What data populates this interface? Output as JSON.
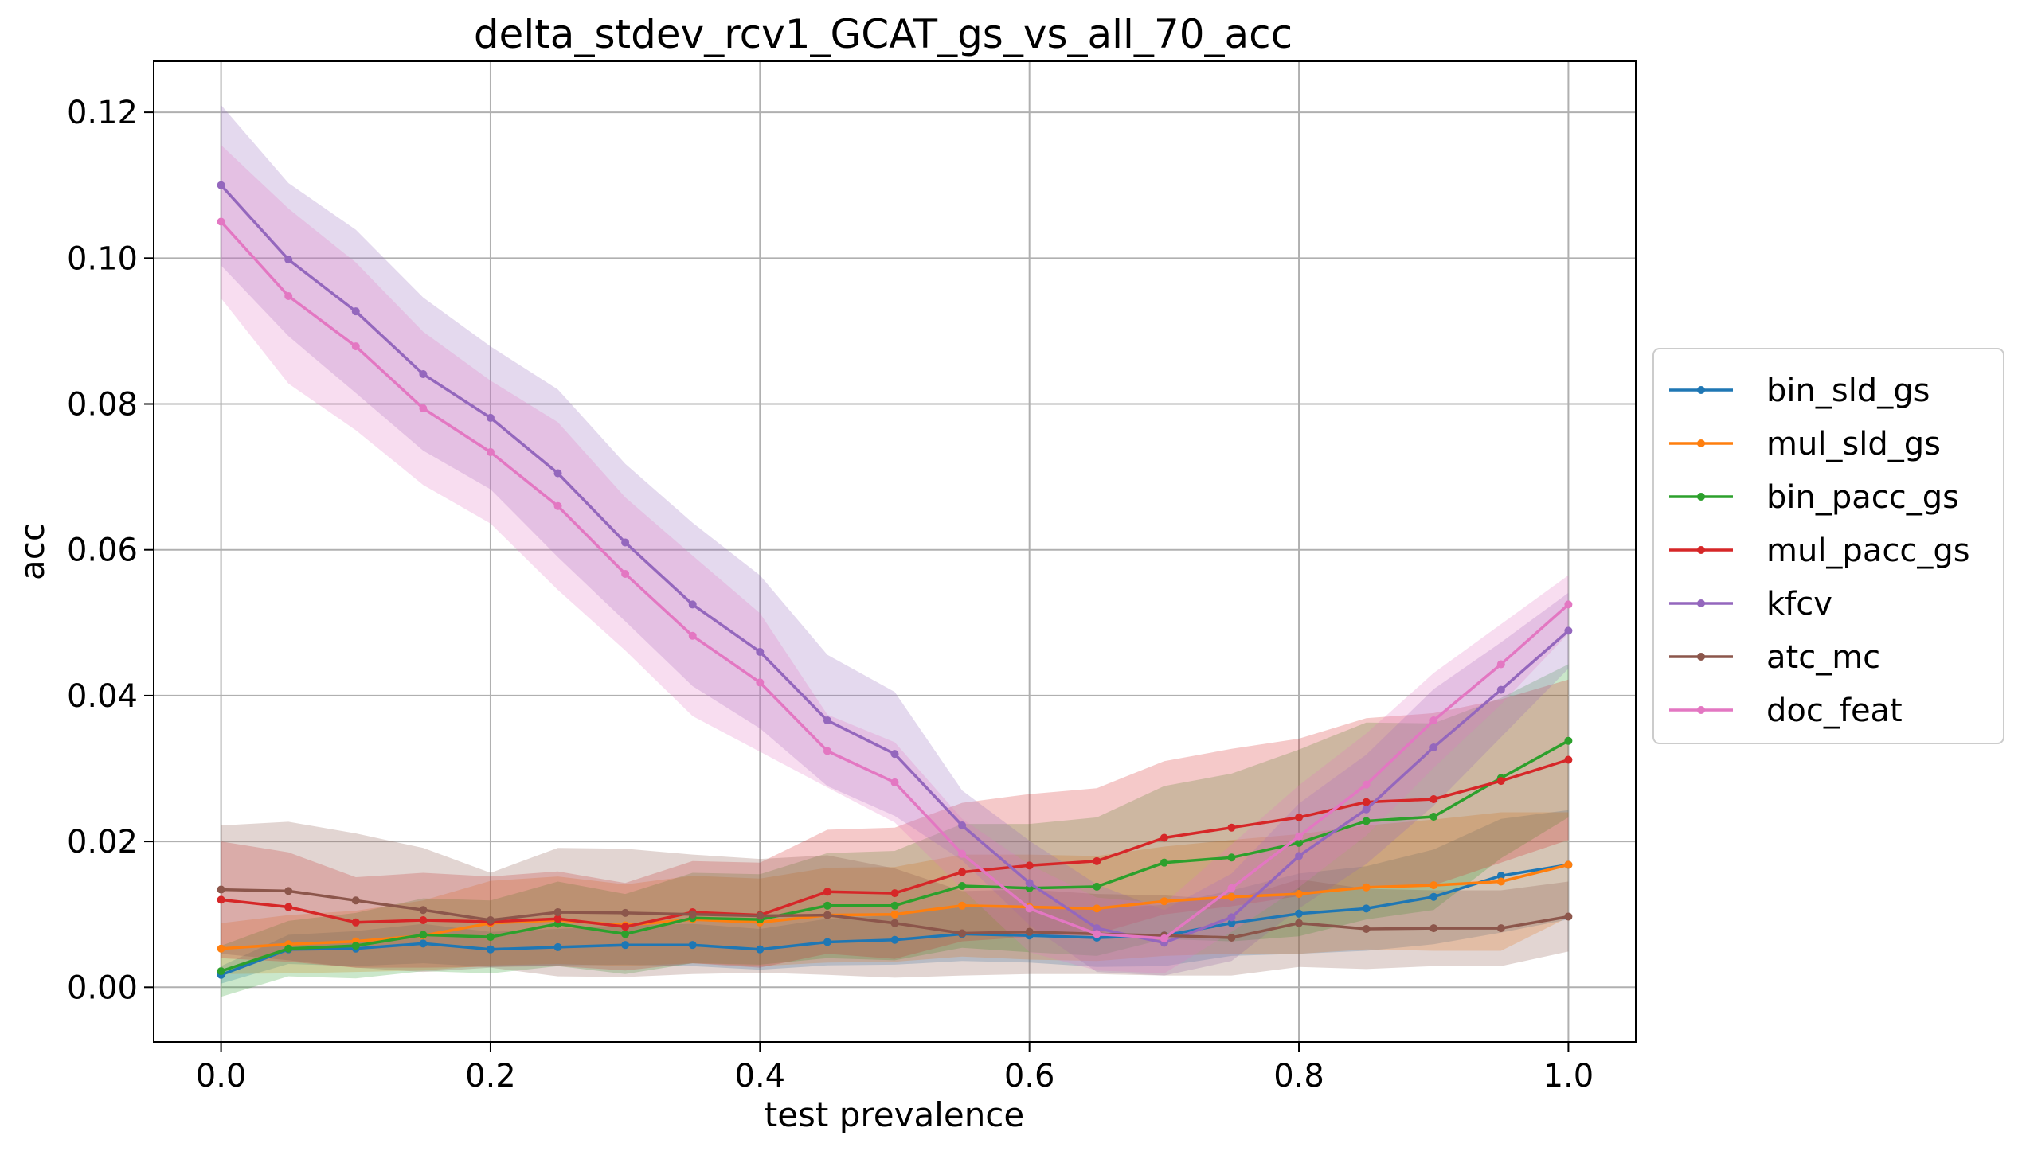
{
  "chart_data": {
    "type": "line",
    "title": "delta_stdev_rcv1_GCAT_gs_vs_all_70_acc",
    "xlabel": "test prevalence",
    "ylabel": "acc",
    "xlim": [
      -0.05,
      1.05
    ],
    "ylim": [
      -0.0075,
      0.127
    ],
    "xticks": [
      0.0,
      0.2,
      0.4,
      0.6,
      0.8,
      1.0
    ],
    "xtick_labels": [
      "0.0",
      "0.2",
      "0.4",
      "0.6",
      "0.8",
      "1.0"
    ],
    "yticks": [
      0.0,
      0.02,
      0.04,
      0.06,
      0.08,
      0.1,
      0.12
    ],
    "ytick_labels": [
      "0.00",
      "0.02",
      "0.04",
      "0.06",
      "0.08",
      "0.10",
      "0.12"
    ],
    "grid": true,
    "legend_position": "outside-right",
    "x": [
      0.0,
      0.05,
      0.1,
      0.15,
      0.2,
      0.25,
      0.3,
      0.35,
      0.4,
      0.45,
      0.5,
      0.55,
      0.6,
      0.65,
      0.7,
      0.75,
      0.8,
      0.85,
      0.9,
      0.95,
      1.0
    ],
    "series": [
      {
        "name": "bin_sld_gs",
        "color": "#1f77b4",
        "values": [
          0.0017,
          0.0052,
          0.0053,
          0.006,
          0.0052,
          0.0055,
          0.0058,
          0.0058,
          0.0052,
          0.0062,
          0.0065,
          0.0073,
          0.0071,
          0.0068,
          0.0071,
          0.0088,
          0.0101,
          0.0108,
          0.0124,
          0.0153,
          0.0168
        ],
        "band": [
          0.0012,
          0.002,
          0.0024,
          0.0027,
          0.0024,
          0.0025,
          0.0027,
          0.0029,
          0.0028,
          0.0032,
          0.0034,
          0.0037,
          0.0037,
          0.004,
          0.0042,
          0.0045,
          0.0055,
          0.0058,
          0.0065,
          0.0078,
          0.0075
        ]
      },
      {
        "name": "mul_sld_gs",
        "color": "#ff7f0e",
        "values": [
          0.0053,
          0.0059,
          0.0063,
          0.0071,
          0.0088,
          0.0092,
          0.0085,
          0.0093,
          0.0089,
          0.0099,
          0.01,
          0.0112,
          0.011,
          0.0108,
          0.0118,
          0.0124,
          0.0128,
          0.0137,
          0.014,
          0.0145,
          0.0168
        ],
        "band": [
          0.0035,
          0.004,
          0.0042,
          0.0048,
          0.0058,
          0.006,
          0.0056,
          0.006,
          0.006,
          0.0065,
          0.0065,
          0.007,
          0.0072,
          0.0072,
          0.0075,
          0.0078,
          0.0082,
          0.0085,
          0.009,
          0.0095,
          0.0072
        ]
      },
      {
        "name": "bin_pacc_gs",
        "color": "#2ca02c",
        "values": [
          0.0022,
          0.0053,
          0.0057,
          0.0072,
          0.0069,
          0.0087,
          0.0073,
          0.0095,
          0.0093,
          0.0112,
          0.0112,
          0.0139,
          0.0136,
          0.0138,
          0.0171,
          0.0178,
          0.0198,
          0.0228,
          0.0234,
          0.0287,
          0.0338
        ],
        "band": [
          0.0035,
          0.0038,
          0.0045,
          0.005,
          0.005,
          0.0058,
          0.0055,
          0.0062,
          0.0062,
          0.0072,
          0.0075,
          0.0085,
          0.0088,
          0.0095,
          0.0105,
          0.0115,
          0.0128,
          0.0135,
          0.0128,
          0.011,
          0.0105
        ]
      },
      {
        "name": "mul_pacc_gs",
        "color": "#d62728",
        "values": [
          0.012,
          0.011,
          0.0089,
          0.0092,
          0.009,
          0.0094,
          0.0083,
          0.0103,
          0.0099,
          0.0131,
          0.0129,
          0.0158,
          0.0167,
          0.0173,
          0.0205,
          0.0219,
          0.0233,
          0.0254,
          0.0258,
          0.0283,
          0.0312
        ],
        "band": [
          0.008,
          0.0075,
          0.0062,
          0.0065,
          0.0062,
          0.0065,
          0.006,
          0.007,
          0.0072,
          0.0085,
          0.009,
          0.0095,
          0.0098,
          0.01,
          0.0105,
          0.0108,
          0.0108,
          0.0115,
          0.0118,
          0.0112,
          0.011
        ]
      },
      {
        "name": "kfcv",
        "color": "#9467bd",
        "values": [
          0.11,
          0.0998,
          0.0927,
          0.0841,
          0.0781,
          0.0705,
          0.061,
          0.0525,
          0.046,
          0.0366,
          0.032,
          0.0222,
          0.0143,
          0.0081,
          0.0061,
          0.0096,
          0.018,
          0.0244,
          0.0329,
          0.0408,
          0.0489
        ],
        "band": [
          0.011,
          0.0105,
          0.0112,
          0.0105,
          0.0098,
          0.0115,
          0.0108,
          0.0112,
          0.0105,
          0.009,
          0.0085,
          0.0048,
          0.0058,
          0.006,
          0.0045,
          0.006,
          0.0072,
          0.0075,
          0.008,
          0.0065,
          0.0052
        ]
      },
      {
        "name": "atc_mc",
        "color": "#8c564b",
        "values": [
          0.0134,
          0.0132,
          0.0119,
          0.0106,
          0.0092,
          0.0103,
          0.0102,
          0.01,
          0.0098,
          0.0099,
          0.0088,
          0.0074,
          0.0076,
          0.0073,
          0.0071,
          0.0068,
          0.0088,
          0.008,
          0.0081,
          0.0081,
          0.0097
        ],
        "band": [
          0.0088,
          0.0095,
          0.0092,
          0.0085,
          0.0065,
          0.0088,
          0.0088,
          0.0082,
          0.0078,
          0.0082,
          0.0075,
          0.0058,
          0.0058,
          0.0055,
          0.0055,
          0.0052,
          0.006,
          0.0055,
          0.0052,
          0.0052,
          0.0048
        ]
      },
      {
        "name": "doc_feat",
        "color": "#e377c2",
        "values": [
          0.105,
          0.0948,
          0.0879,
          0.0794,
          0.0734,
          0.066,
          0.0567,
          0.0482,
          0.0418,
          0.0324,
          0.0281,
          0.0183,
          0.0108,
          0.0073,
          0.0067,
          0.0136,
          0.0207,
          0.0278,
          0.0366,
          0.0443,
          0.0525
        ],
        "band": [
          0.0105,
          0.012,
          0.0115,
          0.0105,
          0.0098,
          0.0115,
          0.0105,
          0.011,
          0.0095,
          0.005,
          0.0055,
          0.0048,
          0.006,
          0.005,
          0.0048,
          0.006,
          0.007,
          0.007,
          0.0065,
          0.0055,
          0.004
        ]
      }
    ]
  }
}
